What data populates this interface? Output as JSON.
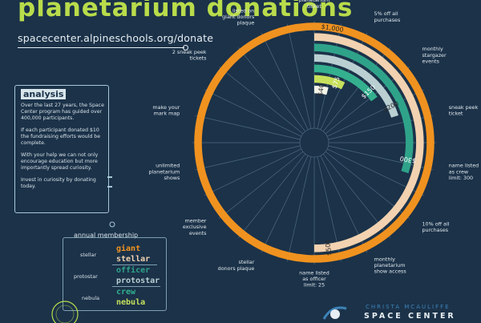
{
  "title": "planetarium donations",
  "url": "spacecenter.alpineschools.org/donate",
  "analysis": {
    "heading": "analysis",
    "p1": "Over the last 27 years, the Space Center program has guided over 400,000 participants.",
    "p2": "If each participant donated $10 the fundraising efforts would be complete.",
    "p3": "With your help we can not only encourage education but more importantly spread curiosity.",
    "p4": "Invest in curiosity by donating today."
  },
  "legend": {
    "title": "annual membership",
    "groups": [
      {
        "label": "stellar",
        "items": [
          {
            "name": "giant",
            "color": "#f0921f"
          },
          {
            "name": "stellar",
            "color": "#f2d2b0"
          }
        ]
      },
      {
        "label": "protostar",
        "items": [
          {
            "name": "officer",
            "color": "#2fa38a"
          },
          {
            "name": "protostar",
            "color": "#b9cfd2"
          }
        ]
      },
      {
        "label": "nebula",
        "items": [
          {
            "name": "crew",
            "color": "#34b08f"
          },
          {
            "name": "nebula",
            "color": "#c7e05b"
          }
        ]
      }
    ]
  },
  "logo": {
    "line1": "CHRISTA MCAULIFFE",
    "line2": "SPACE CENTER"
  },
  "chart_data": {
    "type": "radial-bar",
    "units": "USD",
    "series": [
      {
        "name": "giant",
        "value": 1000,
        "label": "$1,000",
        "color": "#f0921f"
      },
      {
        "name": "stellar",
        "value": 500,
        "label": "$500",
        "color": "#f2d2b0"
      },
      {
        "name": "officer",
        "value": 300,
        "label": "$300",
        "color": "#2fa38a"
      },
      {
        "name": "protostar",
        "value": 200,
        "label": "$200",
        "color": "#b9cfd2"
      },
      {
        "name": "crew",
        "value": 150,
        "label": "$150",
        "color": "#34b08f"
      },
      {
        "name": "nebula",
        "value": 75,
        "label": "$75",
        "color": "#c7e05b"
      },
      {
        "name": "",
        "value": 40,
        "label": "$40",
        "color": "#f4f4e8"
      }
    ],
    "benefits": [
      "planetarium ticket",
      "5% off all purchases",
      "monthly stargazer events",
      "sneak peek ticket",
      "name listed as crew limit: 300",
      "10% off all purchases",
      "monthly planetarium show access",
      "name listed as officer limit: 25",
      "stellar donors plaque",
      "member exclusive events",
      "unlimited planetarium shows",
      "make your mark map",
      "2 sneak peek tickets",
      "listed on giant donors plaque"
    ]
  }
}
